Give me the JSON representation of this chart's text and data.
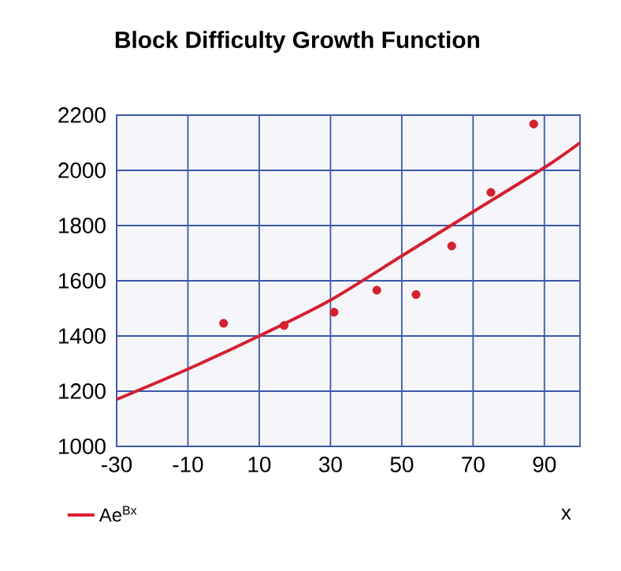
{
  "chart_data": {
    "type": "scatter",
    "title": "Block Difficulty Growth Function",
    "xlabel": "x",
    "xlim": [
      -30,
      100
    ],
    "xticks": [
      -30,
      -10,
      10,
      30,
      50,
      70,
      90
    ],
    "ylim": [
      1000,
      2200
    ],
    "yticks": [
      1000,
      1200,
      1400,
      1600,
      1800,
      2000,
      2200
    ],
    "grid": true,
    "legend": "bottom left",
    "series": [
      {
        "marker": "circle",
        "color": "#d42030",
        "x": [
          0,
          17,
          31,
          43,
          54,
          64,
          75,
          87
        ],
        "values": [
          1446,
          1438,
          1486,
          1566,
          1550,
          1726,
          1920,
          2168
        ]
      },
      {
        "type": "line",
        "marker": "none",
        "name": "Ae$^{Bx}$",
        "color": "#d42030",
        "x": [
          -30,
          -10,
          10,
          30,
          50,
          70,
          90,
          100
        ],
        "values": [
          1170,
          1280,
          1400,
          1530,
          1690,
          1850,
          2010,
          2100
        ]
      }
    ]
  }
}
